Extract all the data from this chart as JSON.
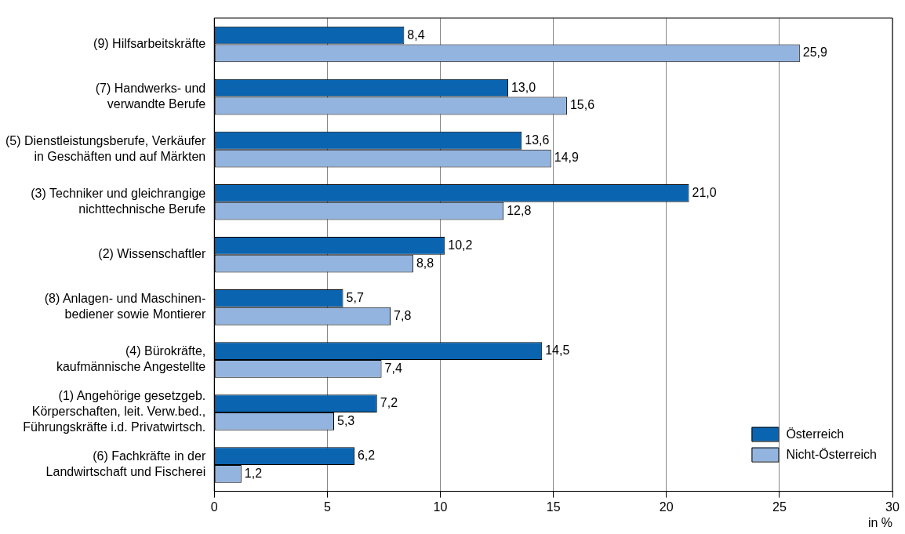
{
  "chart_data": {
    "type": "bar",
    "orientation": "horizontal",
    "xlabel": "in %",
    "categories": [
      "(9) Hilfsarbeitskräfte",
      "(7) Handwerks- und\nverwandte Berufe",
      "(5) Dienstleistungsberufe, Verkäufer\nin Geschäften und auf Märkten",
      "(3) Techniker und gleichrangige\nnichttechnische Berufe",
      "(2) Wissenschaftler",
      "(8) Anlagen- und Maschinen-\nbediener sowie Montierer",
      "(4) Bürokräfte,\nkaufmännische Angestellte",
      "(1) Angehörige gesetzgeb.\nKörperschaften, leit. Verw.bed.,\nFührungskräfte i.d. Privatwirtsch.",
      "(6) Fachkräfte in der\nLandwirtschaft und Fischerei"
    ],
    "series": [
      {
        "name": "Österreich",
        "color": "#0a64b0",
        "values": [
          8.4,
          13.0,
          13.6,
          21.0,
          10.2,
          5.7,
          14.5,
          7.2,
          6.2
        ],
        "value_labels": [
          "8,4",
          "13,0",
          "13,6",
          "21,0",
          "10,2",
          "5,7",
          "14,5",
          "7,2",
          "6,2"
        ]
      },
      {
        "name": "Nicht-Österreich",
        "color": "#93b4de",
        "values": [
          25.9,
          15.6,
          14.9,
          12.8,
          8.8,
          7.8,
          7.4,
          5.3,
          1.2
        ],
        "value_labels": [
          "25,9",
          "15,6",
          "14,9",
          "12,8",
          "8,8",
          "7,8",
          "7,4",
          "5,3",
          "1,2"
        ]
      }
    ],
    "xlim": [
      0,
      30
    ],
    "xticks": [
      0,
      5,
      10,
      15,
      20,
      25,
      30
    ],
    "grid": "x",
    "legend": "bottom right"
  }
}
